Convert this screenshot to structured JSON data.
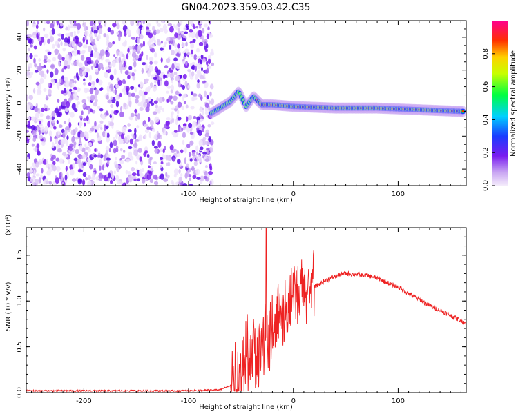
{
  "figure": {
    "title": "GN04.2023.359.03.42.C35"
  },
  "colors": {
    "snr_line": "#ee2222",
    "axes": "#000000",
    "background": "#ffffff"
  },
  "chart_data": [
    {
      "type": "heatmap",
      "title": "GN04.2023.359.03.42.C35",
      "xlabel": "Height of straight line (km)",
      "ylabel": "Frequency (Hz)",
      "xlim": [
        -255,
        165
      ],
      "ylim": [
        -50,
        50
      ],
      "x_ticks": [
        -200,
        -100,
        0,
        100
      ],
      "y_ticks": [
        -40,
        -20,
        0,
        20,
        40
      ],
      "grid": false,
      "noise_region_x": [
        -255,
        -77
      ],
      "signal_track": [
        {
          "x": -78,
          "y": -6
        },
        {
          "x": -70,
          "y": -3
        },
        {
          "x": -60,
          "y": 1
        },
        {
          "x": -52,
          "y": 7
        },
        {
          "x": -45,
          "y": -2
        },
        {
          "x": -38,
          "y": 4
        },
        {
          "x": -30,
          "y": -1
        },
        {
          "x": -20,
          "y": -1
        },
        {
          "x": 0,
          "y": -2
        },
        {
          "x": 40,
          "y": -3
        },
        {
          "x": 80,
          "y": -3
        },
        {
          "x": 120,
          "y": -4
        },
        {
          "x": 160,
          "y": -5
        }
      ],
      "colorbar": {
        "label": "Normalized spectral amplitude",
        "range": [
          0,
          1
        ],
        "ticks": [
          "0.0",
          "0.2",
          "0.4",
          "0.6",
          "0.8"
        ],
        "colormap": "rainbow (white-violet-blue-cyan-green-yellow-red-magenta)"
      }
    },
    {
      "type": "line",
      "xlabel": "Height of straight line (km)",
      "ylabel": "SNR (10 * v/v)",
      "y_multiplier": "(x10⁴)",
      "xlim": [
        -255,
        165
      ],
      "ylim": [
        0,
        1.8
      ],
      "x_ticks": [
        -200,
        -100,
        0,
        100
      ],
      "y_ticks": [
        "0.0",
        "0.5",
        "1.0",
        "1.5"
      ],
      "grid": false,
      "series": [
        {
          "color": "#ee2222",
          "x": [
            -255,
            -200,
            -150,
            -100,
            -70,
            -55,
            -45,
            -40,
            -35,
            -30,
            -27,
            -25,
            -22,
            -20,
            -15,
            -10,
            -5,
            0,
            5,
            10,
            15,
            20,
            30,
            40,
            50,
            60,
            70,
            80,
            90,
            100,
            110,
            120,
            130,
            140,
            150,
            165
          ],
          "y": [
            0.02,
            0.02,
            0.02,
            0.02,
            0.03,
            0.1,
            0.3,
            0.45,
            0.45,
            0.5,
            0.6,
            0.55,
            0.7,
            0.75,
            0.85,
            0.9,
            0.95,
            1.0,
            1.05,
            1.1,
            1.15,
            1.15,
            1.22,
            1.27,
            1.3,
            1.29,
            1.28,
            1.25,
            1.2,
            1.15,
            1.08,
            1.02,
            0.95,
            0.9,
            0.84,
            0.76
          ]
        }
      ]
    }
  ]
}
